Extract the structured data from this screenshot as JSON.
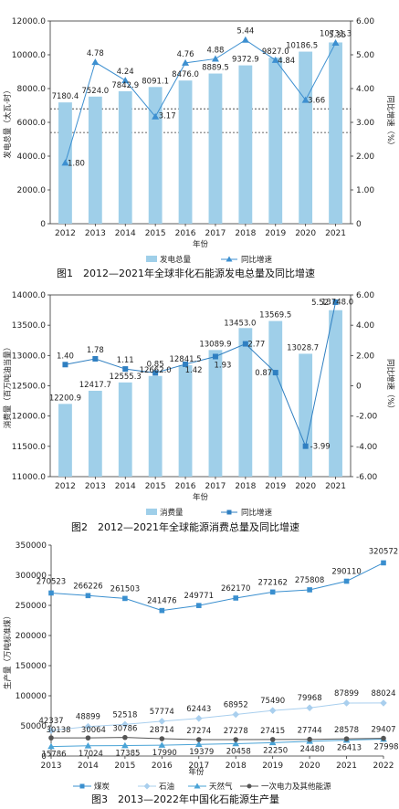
{
  "colors": {
    "bar": "#9fcfe9",
    "line1": "#3c8fd0",
    "line2": "#2f7fc1",
    "coal": "#3a8fcf",
    "oil": "#a9cfee",
    "gas": "#4aa3d6",
    "primary": "#555555"
  },
  "chart_data": [
    {
      "type": "bar",
      "categories": [
        "2012",
        "2013",
        "2014",
        "2015",
        "2016",
        "2017",
        "2018",
        "2019",
        "2020",
        "2021"
      ],
      "series": [
        {
          "name": "发电总量",
          "type": "bar",
          "axis": "left",
          "values": [
            7180.4,
            7524.0,
            7842.9,
            8091.1,
            8476.0,
            8889.5,
            9372.9,
            9827.0,
            10186.5,
            10731.3
          ],
          "labels": [
            "7180.4",
            "7524.0",
            "7842.9",
            "8091.1",
            "8476.0",
            "8889.5",
            "9372.9",
            "9827.0",
            "10186.5",
            "10731.3"
          ]
        },
        {
          "name": "同比增速",
          "type": "line",
          "axis": "right",
          "values": [
            1.8,
            4.78,
            4.24,
            3.17,
            4.76,
            4.88,
            5.44,
            4.84,
            3.66,
            5.35
          ],
          "labels": [
            "1.80",
            "4.78",
            "4.24",
            "3.17",
            "4.76",
            "4.88",
            "5.44",
            "4.84",
            "3.66",
            "5.35"
          ]
        }
      ],
      "ylim": [
        0,
        12000
      ],
      "y2lim": [
        0,
        6
      ],
      "yticks": [
        "0",
        "2000.0",
        "4000.0",
        "6000.0",
        "8000.0",
        "10000.0",
        "12000.0"
      ],
      "y2ticks": [
        "0",
        "1.00",
        "2.00",
        "3.00",
        "4.00",
        "5.00",
        "6.00"
      ],
      "ylabel": "发电总量（太瓦·时）",
      "y2label": "同比增速（%）",
      "xlabel": "年份",
      "refline_values": [
        6800,
        5400
      ],
      "legend_position": "bottom",
      "caption": "图1　2012—2021年全球非化石能源发电总量及同比增速"
    },
    {
      "type": "bar",
      "categories": [
        "2012",
        "2013",
        "2014",
        "2015",
        "2016",
        "2017",
        "2018",
        "2019",
        "2020",
        "2021"
      ],
      "series": [
        {
          "name": "消费量",
          "type": "bar",
          "axis": "left",
          "values": [
            12200.9,
            12417.7,
            12555.3,
            12662.0,
            12841.5,
            13089.9,
            13453.0,
            13569.5,
            13028.7,
            13748.0
          ],
          "labels": [
            "12200.9",
            "12417.7",
            "12555.3",
            "12662.0",
            "12841.5",
            "13089.9",
            "13453.0",
            "13569.5",
            "13028.7",
            "13748.0"
          ]
        },
        {
          "name": "同比增速",
          "type": "line",
          "axis": "right",
          "values": [
            1.4,
            1.78,
            1.11,
            0.85,
            1.42,
            1.93,
            2.77,
            0.87,
            -3.99,
            5.52
          ],
          "labels": [
            "1.40",
            "1.78",
            "1.11",
            "0.85",
            "1.42",
            "1.93",
            "2.77",
            "0.87",
            "-3.99",
            "5.52"
          ]
        }
      ],
      "ylim": [
        11000,
        14000
      ],
      "y2lim": [
        -6,
        6
      ],
      "yticks": [
        "11000.0",
        "11500.0",
        "12000.0",
        "12500.0",
        "13000.0",
        "13500.0",
        "14000.0"
      ],
      "y2ticks": [
        "-6.00",
        "-4.00",
        "-2.00",
        "0",
        "2.00",
        "4.00",
        "6.00"
      ],
      "ylabel": "消费量（百万吨油当量）",
      "y2label": "同比增速（%）",
      "xlabel": "年份",
      "legend_position": "bottom",
      "caption": "图2　2012—2021年全球能源消费总量及同比增速"
    },
    {
      "type": "line",
      "categories": [
        "2013",
        "2014",
        "2015",
        "2016",
        "2017",
        "2018",
        "2019",
        "2020",
        "2021",
        "2022"
      ],
      "series": [
        {
          "name": "煤炭",
          "values": [
            270523,
            266226,
            261503,
            241476,
            249771,
            262170,
            272162,
            275808,
            290110,
            320572
          ]
        },
        {
          "name": "石油",
          "values": [
            42337,
            48899,
            52518,
            57774,
            62443,
            68952,
            75490,
            79968,
            87899,
            88024
          ]
        },
        {
          "name": "天然气",
          "values": [
            15786,
            17024,
            17385,
            17990,
            19379,
            20458,
            22250,
            24480,
            26413,
            27998
          ]
        },
        {
          "name": "一次电力及其他能源",
          "values": [
            30138,
            30064,
            30786,
            28714,
            27274,
            27278,
            27415,
            27744,
            28578,
            29407
          ]
        }
      ],
      "ylim": [
        0,
        350000
      ],
      "yticks": [
        "0",
        "50000",
        "100000",
        "150000",
        "200000",
        "250000",
        "300000",
        "350000"
      ],
      "ylabel": "生产量（万吨标准煤）",
      "xlabel": "年份",
      "legend_position": "bottom",
      "caption": "图3　2013—2022年中国化石能源生产量"
    }
  ]
}
